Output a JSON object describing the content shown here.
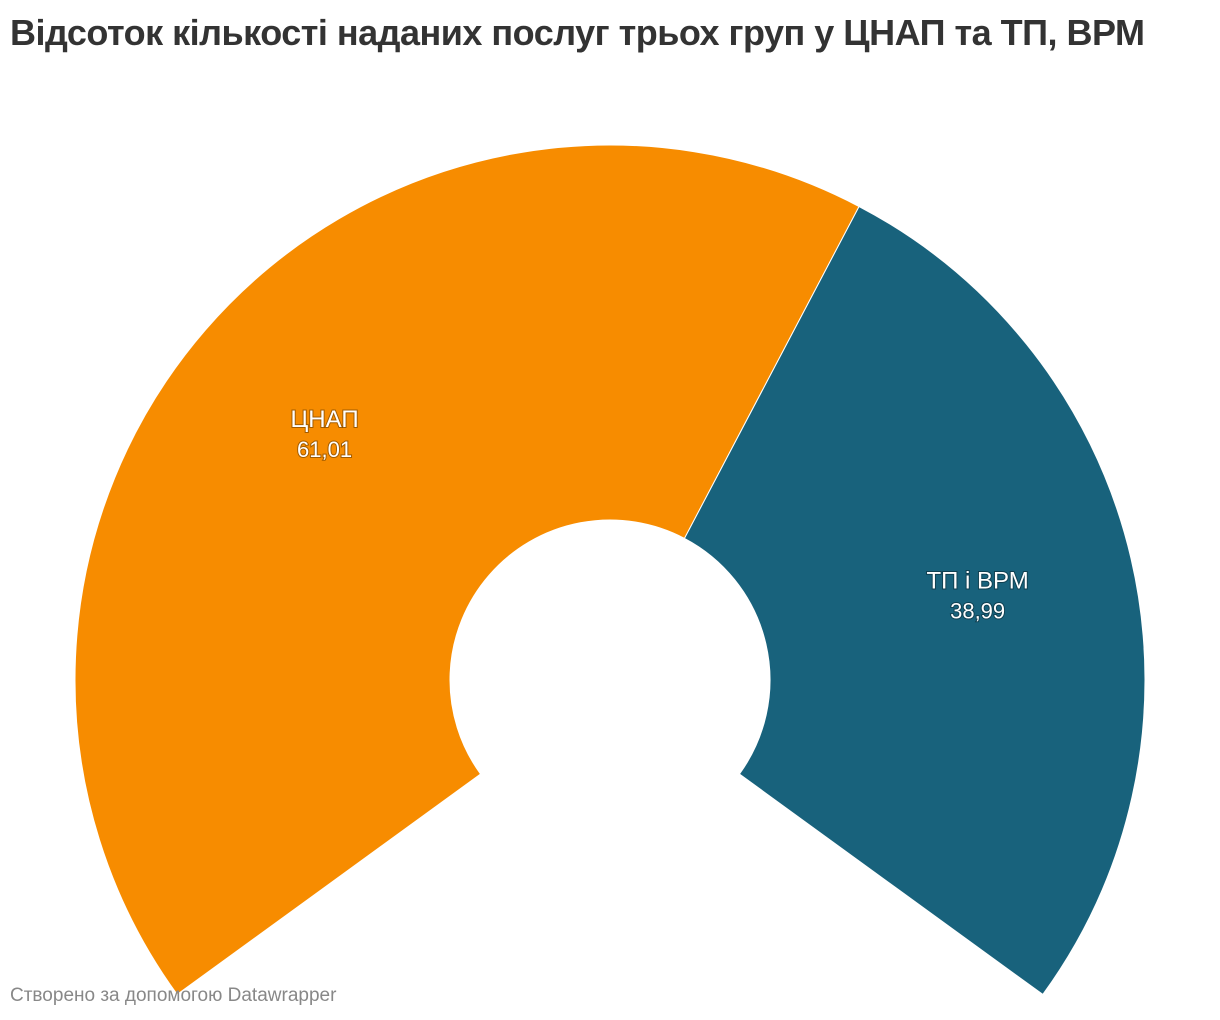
{
  "title": "Відсоток кількості наданих послуг трьох груп у ЦНАП та ТП, ВРМ",
  "footer": "Створено за допомогою Datawrapper",
  "chart_data": {
    "type": "pie",
    "subtype": "half-donut",
    "categories": [
      "ЦНАП",
      "ТП і ВРМ"
    ],
    "values": [
      61.01,
      38.99
    ],
    "value_labels": [
      "61,01",
      "38,99"
    ],
    "colors": [
      "#f78c00",
      "#18627c"
    ],
    "title": "Відсоток кількості наданих послуг трьох груп у ЦНАП та ТП, ВРМ",
    "legend": "none"
  }
}
